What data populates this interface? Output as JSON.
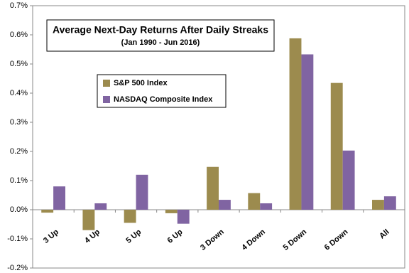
{
  "chart_data": {
    "type": "bar",
    "title": "Average Next-Day Returns After Daily Streaks",
    "subtitle": "(Jan 1990 - Jun 2016)",
    "categories": [
      "3 Up",
      "4 Up",
      "5 Up",
      "6 Up",
      "3 Down",
      "4 Down",
      "5 Down",
      "6 Down",
      "All"
    ],
    "series": [
      {
        "name": "S&P 500 Index",
        "color": "#9c8b4e",
        "values": [
          -0.01,
          -0.07,
          -0.045,
          -0.012,
          0.147,
          0.057,
          0.588,
          0.435,
          0.034
        ]
      },
      {
        "name": "NASDAQ Composite Index",
        "color": "#8064a2",
        "values": [
          0.08,
          0.022,
          0.12,
          -0.048,
          0.034,
          0.022,
          0.533,
          0.203,
          0.046
        ]
      }
    ],
    "ylim": [
      -0.2,
      0.7
    ],
    "yticks": [
      {
        "value": -0.2,
        "label": "-0.2%"
      },
      {
        "value": -0.1,
        "label": "-0.1%"
      },
      {
        "value": 0,
        "label": "0.0%"
      },
      {
        "value": 0.1,
        "label": "0.1%"
      },
      {
        "value": 0.2,
        "label": "0.2%"
      },
      {
        "value": 0.3,
        "label": "0.3%"
      },
      {
        "value": 0.4,
        "label": "0.4%"
      },
      {
        "value": 0.5,
        "label": "0.5%"
      },
      {
        "value": 0.6,
        "label": "0.6%"
      },
      {
        "value": 0.7,
        "label": "0.7%"
      }
    ],
    "grid": false
  }
}
